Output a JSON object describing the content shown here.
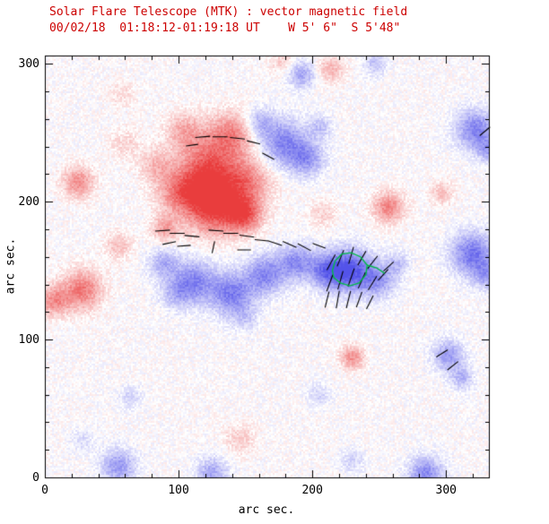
{
  "chart_data": {
    "type": "heatmap",
    "title": "Solar Flare Telescope (MTK) : vector magnetic field",
    "subtitle": "00/02/18  01:18:12-01:19:18 UT    W 5' 6\"  S 5'48\"",
    "xlabel": "arc sec.",
    "ylabel": "arc sec.",
    "xlim": [
      0,
      332
    ],
    "ylim": [
      0,
      306
    ],
    "xticks": [
      "0",
      "100",
      "200",
      "300"
    ],
    "yticks": [
      "0",
      "100",
      "200",
      "300"
    ],
    "xtick_values": [
      0,
      100,
      200,
      300
    ],
    "ytick_values": [
      0,
      100,
      200,
      300
    ],
    "minor_tick_step": 20,
    "grid": false,
    "colors": {
      "positive_red": "#e62323",
      "negative_blue": "#3c3ce6",
      "contour_green": "#00bb44",
      "title_red": "#cc0000",
      "axis": "#000000"
    },
    "blob_format": "[x_arcsec, y_arcsec, sigma_arcsec, amplitude, polarity(+1 red / -1 blue)]",
    "blobs": [
      [
        122,
        232,
        16,
        0.5,
        1
      ],
      [
        140,
        249,
        11,
        0.45,
        1
      ],
      [
        104,
        252,
        9,
        0.3,
        1
      ],
      [
        150,
        214,
        13,
        0.55,
        1
      ],
      [
        126,
        196,
        14,
        0.85,
        1
      ],
      [
        149,
        190,
        9,
        0.65,
        1
      ],
      [
        100,
        206,
        11,
        0.5,
        1
      ],
      [
        84,
        226,
        9,
        0.3,
        1
      ],
      [
        60,
        242,
        8,
        0.18,
        1
      ],
      [
        120,
        214,
        12,
        0.45,
        1
      ],
      [
        25,
        214,
        8,
        0.5,
        1
      ],
      [
        28,
        136,
        10,
        0.6,
        1
      ],
      [
        7,
        128,
        8,
        0.5,
        1
      ],
      [
        55,
        168,
        7,
        0.28,
        1
      ],
      [
        90,
        180,
        7,
        0.4,
        1
      ],
      [
        208,
        191,
        7,
        0.2,
        1
      ],
      [
        230,
        87,
        6,
        0.5,
        1
      ],
      [
        257,
        196,
        8,
        0.55,
        1
      ],
      [
        297,
        206,
        6,
        0.28,
        1
      ],
      [
        214,
        296,
        7,
        0.32,
        1
      ],
      [
        178,
        301,
        6,
        0.22,
        1
      ],
      [
        146,
        28,
        8,
        0.22,
        1
      ],
      [
        58,
        278,
        7,
        0.15,
        1
      ],
      [
        178,
        243,
        12,
        0.6,
        -1
      ],
      [
        196,
        231,
        9,
        0.5,
        -1
      ],
      [
        161,
        258,
        7,
        0.35,
        -1
      ],
      [
        206,
        254,
        6,
        0.3,
        -1
      ],
      [
        112,
        142,
        11,
        0.6,
        -1
      ],
      [
        89,
        155,
        8,
        0.4,
        -1
      ],
      [
        98,
        133,
        8,
        0.3,
        -1
      ],
      [
        140,
        133,
        11,
        0.65,
        -1
      ],
      [
        165,
        147,
        10,
        0.6,
        -1
      ],
      [
        188,
        156,
        9,
        0.55,
        -1
      ],
      [
        210,
        150,
        9,
        0.6,
        -1
      ],
      [
        228,
        150,
        11,
        0.85,
        -1
      ],
      [
        249,
        143,
        9,
        0.5,
        -1
      ],
      [
        264,
        155,
        6,
        0.3,
        -1
      ],
      [
        150,
        115,
        7,
        0.2,
        -1
      ],
      [
        320,
        162,
        11,
        0.7,
        -1
      ],
      [
        331,
        146,
        7,
        0.4,
        -1
      ],
      [
        302,
        88,
        8,
        0.5,
        -1
      ],
      [
        312,
        72,
        6,
        0.35,
        -1
      ],
      [
        322,
        252,
        10,
        0.65,
        -1
      ],
      [
        332,
        237,
        6,
        0.4,
        -1
      ],
      [
        192,
        292,
        7,
        0.45,
        -1
      ],
      [
        247,
        300,
        6,
        0.3,
        -1
      ],
      [
        55,
        8,
        9,
        0.5,
        -1
      ],
      [
        125,
        3,
        8,
        0.45,
        -1
      ],
      [
        230,
        12,
        6,
        0.22,
        -1
      ],
      [
        285,
        2,
        9,
        0.6,
        -1
      ],
      [
        64,
        58,
        6,
        0.22,
        -1
      ],
      [
        205,
        60,
        6,
        0.22,
        -1
      ],
      [
        28,
        27,
        6,
        0.18,
        -1
      ]
    ],
    "vector_format": "{x,y arcsec; ang deg CCW from +x; len arcsec}",
    "vectors": [
      {
        "x": 118,
        "y": 247,
        "ang": 5,
        "len": 11
      },
      {
        "x": 131,
        "y": 247,
        "ang": 0,
        "len": 11
      },
      {
        "x": 144,
        "y": 246,
        "ang": -6,
        "len": 11
      },
      {
        "x": 156,
        "y": 243,
        "ang": -14,
        "len": 10
      },
      {
        "x": 110,
        "y": 241,
        "ang": 8,
        "len": 9
      },
      {
        "x": 167,
        "y": 233,
        "ang": -28,
        "len": 10
      },
      {
        "x": 88,
        "y": 179,
        "ang": 4,
        "len": 11
      },
      {
        "x": 99,
        "y": 177,
        "ang": 0,
        "len": 11
      },
      {
        "x": 110,
        "y": 175,
        "ang": -5,
        "len": 11
      },
      {
        "x": 93,
        "y": 170,
        "ang": 12,
        "len": 10
      },
      {
        "x": 104,
        "y": 168,
        "ang": 4,
        "len": 10
      },
      {
        "x": 128,
        "y": 179,
        "ang": -4,
        "len": 11
      },
      {
        "x": 139,
        "y": 177,
        "ang": 0,
        "len": 11
      },
      {
        "x": 151,
        "y": 175,
        "ang": -8,
        "len": 11
      },
      {
        "x": 162,
        "y": 172,
        "ang": -6,
        "len": 10
      },
      {
        "x": 126,
        "y": 167,
        "ang": 78,
        "len": 9
      },
      {
        "x": 149,
        "y": 165,
        "ang": 0,
        "len": 10
      },
      {
        "x": 172,
        "y": 170,
        "ang": -18,
        "len": 11
      },
      {
        "x": 183,
        "y": 169,
        "ang": -24,
        "len": 11
      },
      {
        "x": 194,
        "y": 167,
        "ang": -28,
        "len": 11
      },
      {
        "x": 205,
        "y": 168,
        "ang": -20,
        "len": 10
      },
      {
        "x": 214,
        "y": 156,
        "ang": 62,
        "len": 13
      },
      {
        "x": 221,
        "y": 159,
        "ang": 68,
        "len": 13
      },
      {
        "x": 229,
        "y": 161,
        "ang": 74,
        "len": 13
      },
      {
        "x": 237,
        "y": 159,
        "ang": 60,
        "len": 12
      },
      {
        "x": 245,
        "y": 156,
        "ang": 52,
        "len": 12
      },
      {
        "x": 213,
        "y": 141,
        "ang": 70,
        "len": 13
      },
      {
        "x": 221,
        "y": 143,
        "ang": 74,
        "len": 14
      },
      {
        "x": 229,
        "y": 145,
        "ang": 71,
        "len": 14
      },
      {
        "x": 237,
        "y": 143,
        "ang": 66,
        "len": 13
      },
      {
        "x": 245,
        "y": 141,
        "ang": 58,
        "len": 12
      },
      {
        "x": 253,
        "y": 147,
        "ang": 48,
        "len": 11
      },
      {
        "x": 211,
        "y": 129,
        "ang": 76,
        "len": 12
      },
      {
        "x": 219,
        "y": 129,
        "ang": 80,
        "len": 13
      },
      {
        "x": 227,
        "y": 129,
        "ang": 76,
        "len": 13
      },
      {
        "x": 235,
        "y": 129,
        "ang": 70,
        "len": 12
      },
      {
        "x": 243,
        "y": 127,
        "ang": 63,
        "len": 11
      },
      {
        "x": 257,
        "y": 153,
        "ang": 42,
        "len": 10
      },
      {
        "x": 297,
        "y": 90,
        "ang": 32,
        "len": 10
      },
      {
        "x": 305,
        "y": 81,
        "ang": 38,
        "len": 10
      },
      {
        "x": 329,
        "y": 251,
        "ang": 40,
        "len": 10
      }
    ],
    "green_contour": {
      "closed": [
        [
          215,
          150
        ],
        [
          217,
          157
        ],
        [
          222,
          162
        ],
        [
          229,
          163
        ],
        [
          236,
          160
        ],
        [
          241,
          154
        ],
        [
          240,
          147
        ],
        [
          235,
          141
        ],
        [
          228,
          139
        ],
        [
          221,
          141
        ],
        [
          216,
          145
        ]
      ],
      "tail": [
        [
          241,
          154
        ],
        [
          248,
          152
        ],
        [
          254,
          148
        ]
      ]
    },
    "noise": {
      "amplitude": 0.22,
      "seed": 12345
    }
  }
}
